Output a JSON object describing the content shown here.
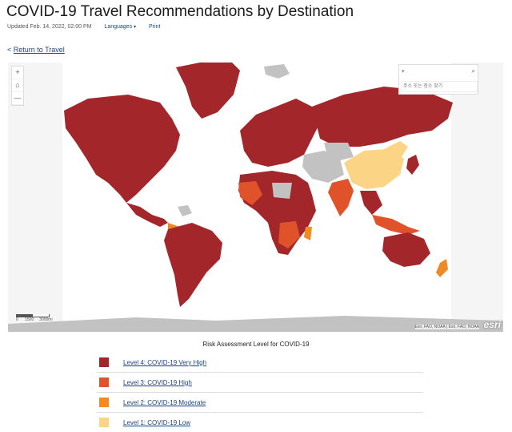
{
  "page": {
    "title": "COVID-19 Travel Recommendations by Destination",
    "updated": "Updated Feb. 14, 2022, 02:00 PM",
    "languages": "Languages",
    "print": "Print",
    "back_prefix": "< ",
    "back_link": "Return to Travel"
  },
  "map": {
    "zoom_in": "+",
    "home": "⌂",
    "zoom_out": "—",
    "search_placeholder": "주소 또는 장소 찾기",
    "scale_labels": "0      1500     3000mi",
    "attribution": "Esri, FAO, NOAA | Esri, FAO, NOAA",
    "esri_logo": "esri",
    "colors": {
      "level4": "#a3262a",
      "level3": "#e0532a",
      "level2": "#ef8a24",
      "level1": "#fbd585",
      "nodata": "#c2c2c2",
      "sea": "#ffffff"
    }
  },
  "legend": {
    "title": "Risk Assessment Level for COVID-19",
    "items": [
      {
        "label": "Level 4: COVID-19 Very High",
        "color": "#a3262a"
      },
      {
        "label": "Level 3: COVID-19 High",
        "color": "#e0532a"
      },
      {
        "label": "Level 2: COVID-19 Moderate",
        "color": "#ef8a24"
      },
      {
        "label": "Level 1: COVID-19 Low",
        "color": "#fbd585"
      }
    ]
  }
}
